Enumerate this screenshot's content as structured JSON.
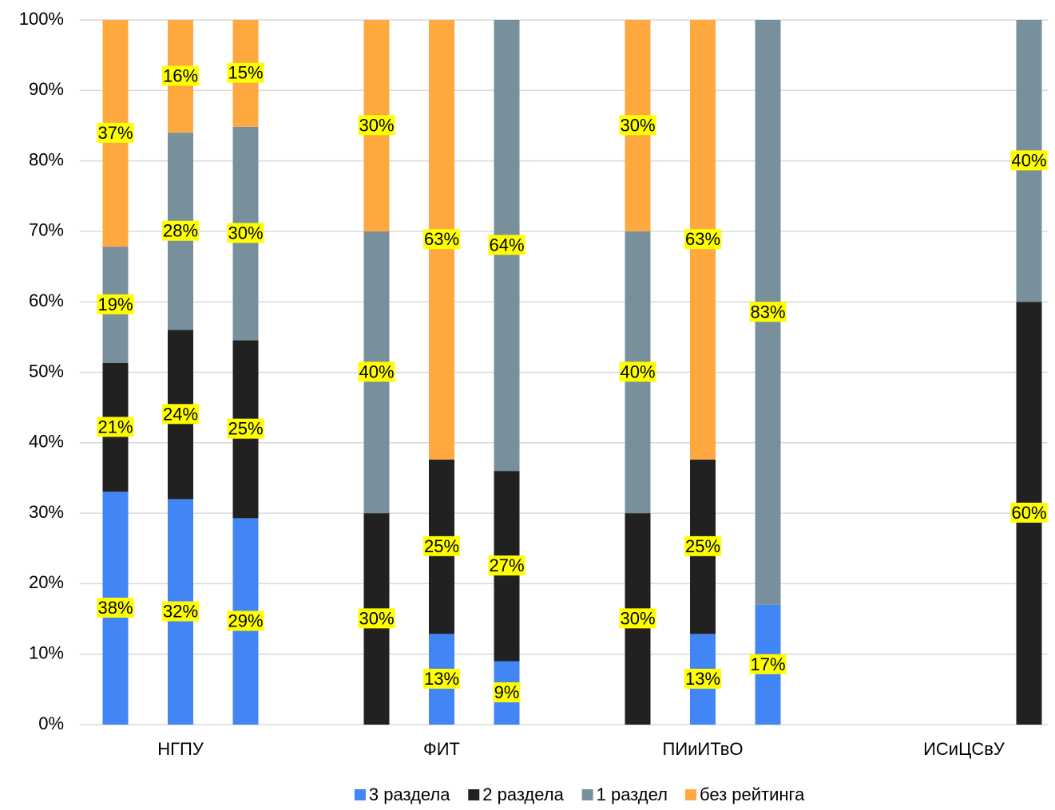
{
  "chart_data": {
    "type": "bar",
    "stacking": "percent",
    "groups": [
      "НГПУ",
      "ФИТ",
      "ПИиИТвО",
      "ИСиЦСвУ"
    ],
    "categories": [
      null,
      null,
      null,
      null,
      null,
      null,
      null,
      null,
      null,
      null,
      null,
      null
    ],
    "series": [
      {
        "name": "3 раздела",
        "color": "#4285f4",
        "values": [
          38,
          32,
          29,
          null,
          13,
          9,
          null,
          13,
          17,
          null,
          null,
          null
        ],
        "value_labels": [
          "38%",
          "32%",
          "29%",
          null,
          "13%",
          "9%",
          null,
          "13%",
          "17%",
          null,
          null,
          null
        ]
      },
      {
        "name": "2 раздела",
        "color": "#212121",
        "values": [
          21,
          24,
          25,
          30,
          25,
          27,
          30,
          25,
          null,
          null,
          null,
          60
        ],
        "value_labels": [
          "21%",
          "24%",
          "25%",
          "30%",
          "25%",
          "27%",
          "30%",
          "25%",
          null,
          null,
          null,
          "60%"
        ]
      },
      {
        "name": "1 раздел",
        "color": "#78909c",
        "values": [
          19,
          28,
          30,
          40,
          null,
          64,
          40,
          null,
          83,
          null,
          null,
          40
        ],
        "value_labels": [
          "19%",
          "28%",
          "30%",
          "40%",
          null,
          "64%",
          "40%",
          null,
          "83%",
          null,
          null,
          "40%"
        ]
      },
      {
        "name": "без рейтинга",
        "color": "#ffa840",
        "values": [
          37,
          16,
          15,
          30,
          63,
          null,
          30,
          63,
          null,
          null,
          null,
          null
        ],
        "value_labels": [
          "37%",
          "16%",
          "15%",
          "30%",
          "63%",
          null,
          "30%",
          "63%",
          null,
          null,
          null,
          null
        ]
      }
    ],
    "label_background": "#ffff00",
    "ylim": [
      0,
      100
    ],
    "yticks": [
      {
        "value": 0,
        "label": "0%"
      },
      {
        "value": 10,
        "label": "10%"
      },
      {
        "value": 20,
        "label": "20%"
      },
      {
        "value": 30,
        "label": "30%"
      },
      {
        "value": 40,
        "label": "40%"
      },
      {
        "value": 50,
        "label": "50%"
      },
      {
        "value": 60,
        "label": "60%"
      },
      {
        "value": 70,
        "label": "70%"
      },
      {
        "value": 80,
        "label": "80%"
      },
      {
        "value": 90,
        "label": "90%"
      },
      {
        "value": 100,
        "label": "100%"
      }
    ],
    "grid": true,
    "legend": "bottom"
  }
}
